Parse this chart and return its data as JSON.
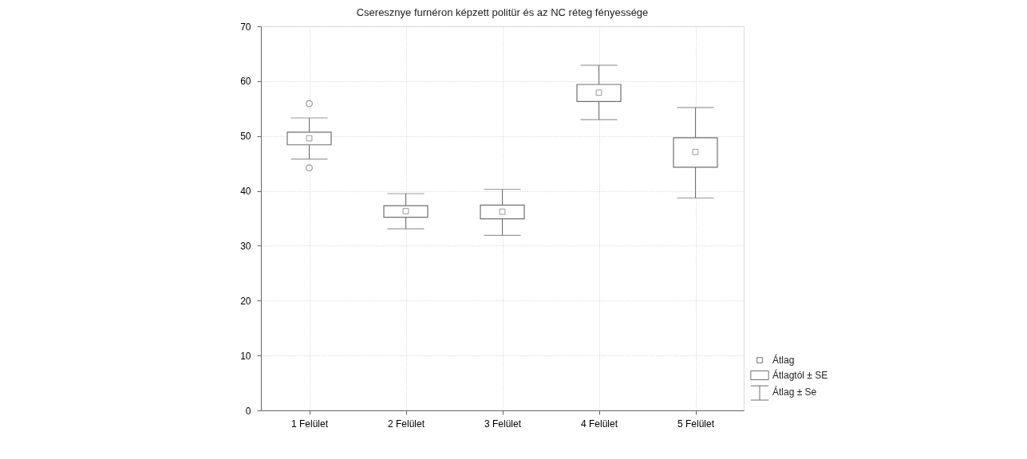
{
  "chart_data": {
    "type": "box",
    "title": "Cseresznye furnéron képzett politür és az NC réteg fényessége",
    "categories": [
      "1 Felület",
      "2 Felület",
      "3 Felület",
      "4 Felület",
      "5 Felület"
    ],
    "boxes": [
      {
        "low": 45.8,
        "q1": 48.4,
        "median": 49.6,
        "q3": 50.7,
        "high": 53.3,
        "outliers": [
          55.9,
          44.2
        ]
      },
      {
        "low": 33.1,
        "q1": 35.2,
        "median": 36.3,
        "q3": 37.3,
        "high": 39.5
      },
      {
        "low": 31.9,
        "q1": 34.9,
        "median": 36.2,
        "q3": 37.4,
        "high": 40.3
      },
      {
        "low": 53.0,
        "q1": 56.3,
        "median": 57.9,
        "q3": 59.4,
        "high": 62.9
      },
      {
        "low": 38.7,
        "q1": 44.3,
        "median": 47.1,
        "q3": 49.7,
        "high": 55.2
      }
    ],
    "color": "#707070",
    "ylim": [
      0,
      70
    ],
    "yticks": [
      0,
      10,
      20,
      30,
      40,
      50,
      60,
      70
    ],
    "grid": true,
    "annotations": [
      "Átlag",
      "Átlagtól ± SE",
      "Átlag ± Se"
    ]
  }
}
